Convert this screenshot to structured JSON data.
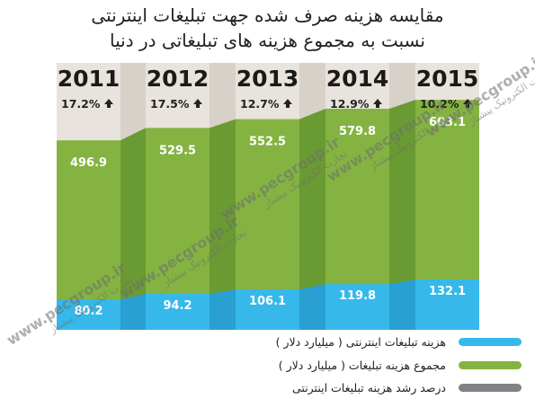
{
  "title_line1": "مقایسه هزینه صرف شده جهت تبلیغات اینترنتی",
  "title_line2": "نسبت به مجموع هزینه های تبلیغاتی در دنیا",
  "chart_data": {
    "type": "bar",
    "categories": [
      "2011",
      "2012",
      "2013",
      "2014",
      "2015"
    ],
    "growth_labels": [
      "17.2%",
      "17.5%",
      "12.7%",
      "12.9%",
      "10.2%"
    ],
    "growth_values": [
      17.2,
      17.5,
      12.7,
      12.9,
      10.2
    ],
    "series": [
      {
        "name": "هزینه تبلیغات اینترنتی ( میلیارد دلار )",
        "values": [
          80.2,
          94.2,
          106.1,
          119.8,
          132.1
        ],
        "color": "#36b8ea"
      },
      {
        "name": "مجموع هزینه تبلیغات ( میلیارد دلار )",
        "values": [
          496.9,
          529.5,
          552.5,
          579.8,
          603.1
        ],
        "color": "#84b342"
      },
      {
        "name": "درصد رشد هزینه تبلیغات اینترنتی",
        "color": "#808285"
      }
    ],
    "ylim": [
      0,
      700
    ],
    "grid": false,
    "legend_position": "bottom-right"
  },
  "colors": {
    "background_band": "#e8e3dc",
    "background_gap": "#d7d1c9",
    "blue": "#36b8ea",
    "blue_dark": "#2a9fd1",
    "green": "#84b342",
    "green_dark": "#6a9a32",
    "gray": "#808285"
  },
  "watermark": {
    "url": "www.pecgroup.ir",
    "text": "تجارت الکترونیک پیشتاز"
  }
}
